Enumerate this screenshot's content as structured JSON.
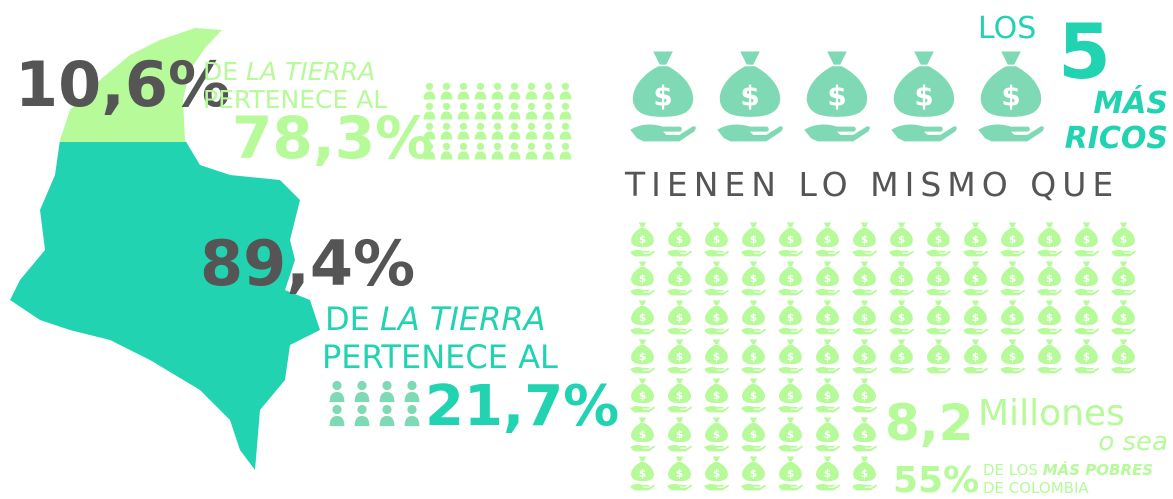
{
  "left": {
    "top": {
      "percent": "10,6%",
      "de": "DE",
      "la_tierra": "LA TIERRA",
      "pertenece": "PERTENECE AL",
      "share": "78,3%"
    },
    "bottom": {
      "percent": "89,4%",
      "de": "DE",
      "la_tierra": "LA TIERRA",
      "pertenece": "PERTENECE AL",
      "share": "21,7%"
    }
  },
  "right": {
    "los": "LOS",
    "five": "5",
    "mas": "MÁS",
    "ricos": "RICOS",
    "tienen": "TIENEN LO MISMO QUE",
    "number": "8,2",
    "millones": "Millones",
    "o_sea": "o sea",
    "pct": "55%",
    "de_los": "DE LOS",
    "mas_pobres": "MÁS POBRES",
    "de_colombia": "DE COLOMBIA"
  }
}
